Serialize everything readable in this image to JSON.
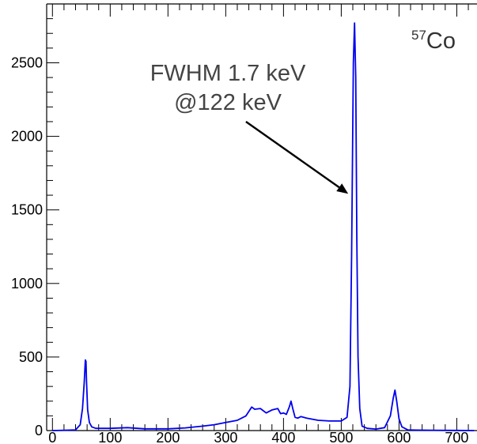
{
  "chart_data": {
    "type": "line",
    "title": "",
    "xlabel": "",
    "ylabel": "",
    "xlim": [
      -10,
      735
    ],
    "ylim": [
      0,
      2900
    ],
    "x_ticks": [
      0,
      100,
      200,
      300,
      400,
      500,
      600,
      700
    ],
    "y_ticks": [
      0,
      500,
      1000,
      1500,
      2000,
      2500
    ],
    "x_tick_labels": [
      "0",
      "100",
      "200",
      "300",
      "400",
      "500",
      "600",
      "700"
    ],
    "y_tick_labels": [
      "0",
      "500",
      "1000",
      "1500",
      "2000",
      "2500"
    ],
    "grid": false,
    "line_color": "#0000ee",
    "series": [
      {
        "name": "",
        "x": [
          0,
          20,
          40,
          48,
          52,
          55,
          57,
          58,
          59,
          61,
          64,
          68,
          75,
          100,
          130,
          160,
          200,
          230,
          260,
          280,
          300,
          320,
          335,
          345,
          350,
          360,
          370,
          380,
          390,
          395,
          400,
          405,
          410,
          413,
          416,
          420,
          425,
          430,
          440,
          460,
          480,
          500,
          510,
          515,
          518,
          521,
          523,
          525,
          527,
          529,
          532,
          536,
          545,
          560,
          575,
          585,
          590,
          593,
          596,
          600,
          605,
          615,
          630,
          660,
          700,
          730
        ],
        "y": [
          0,
          2,
          5,
          40,
          150,
          330,
          480,
          470,
          330,
          140,
          55,
          25,
          15,
          15,
          20,
          12,
          12,
          18,
          30,
          40,
          55,
          70,
          100,
          160,
          145,
          150,
          120,
          140,
          150,
          115,
          120,
          110,
          160,
          200,
          150,
          90,
          85,
          95,
          85,
          70,
          65,
          65,
          90,
          300,
          1200,
          2500,
          2770,
          2400,
          1300,
          500,
          150,
          30,
          15,
          10,
          20,
          100,
          220,
          275,
          200,
          80,
          25,
          5,
          3,
          2,
          1,
          0
        ]
      }
    ],
    "annotations": [
      {
        "line1": "FWHM 1.7 keV",
        "line2": "@122 keV",
        "arrow_from": [
          335,
          2100
        ],
        "arrow_to": [
          512,
          1610
        ]
      },
      {
        "mass_number": "57",
        "element": "Co"
      }
    ]
  }
}
